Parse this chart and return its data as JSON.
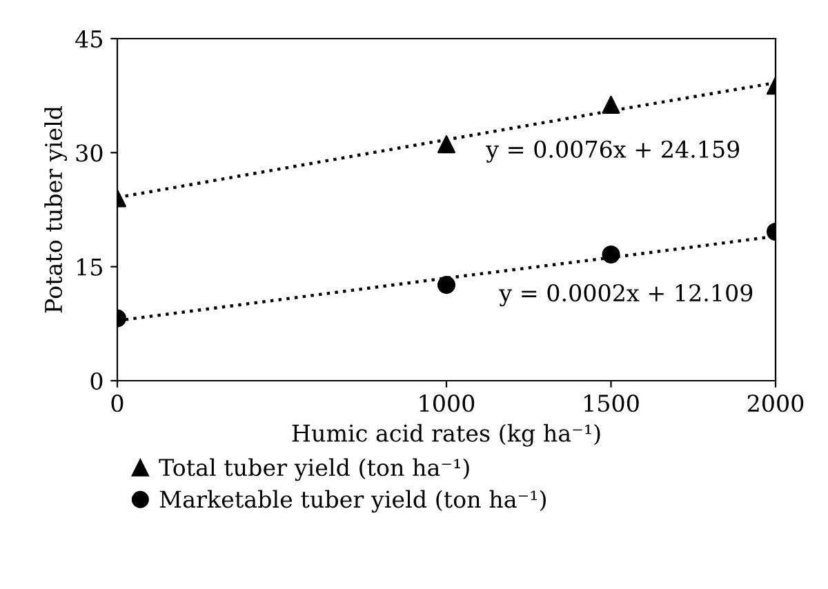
{
  "chart_data": {
    "type": "scatter",
    "xlabel": "Humic acid rates (kg ha⁻¹)",
    "ylabel": "Potato tuber yield",
    "x": [
      0,
      1000,
      1500,
      2000
    ],
    "series": [
      {
        "name": "Total tuber yield (ton ha⁻¹)",
        "color": "#000000",
        "marker": "triangle",
        "values": [
          24,
          31.1,
          36.3,
          38.8
        ]
      },
      {
        "name": "Marketable tuber yield (ton ha⁻¹)",
        "color": "#000000",
        "marker": "circle",
        "values": [
          8.2,
          12.6,
          16.6,
          19.6
        ]
      },
      {
        "type": "line",
        "color": "#000000",
        "line_style": "dotted",
        "values": [
          24.1,
          31.7,
          35.5,
          39.2
        ]
      },
      {
        "type": "line",
        "color": "#000000",
        "line_style": "dotted",
        "values": [
          7.9,
          13.5,
          16.2,
          19.0
        ]
      }
    ],
    "annotations": [
      "y = 0.0076x + 24.159",
      "y = 0.0002x + 12.109"
    ],
    "xlim": [
      0,
      2000
    ],
    "xticks": [
      0,
      1000,
      1500,
      2000
    ],
    "ylim": [
      0,
      45
    ],
    "yticks": [
      0,
      15,
      30,
      45
    ],
    "grid": false,
    "legend": "bottom"
  }
}
